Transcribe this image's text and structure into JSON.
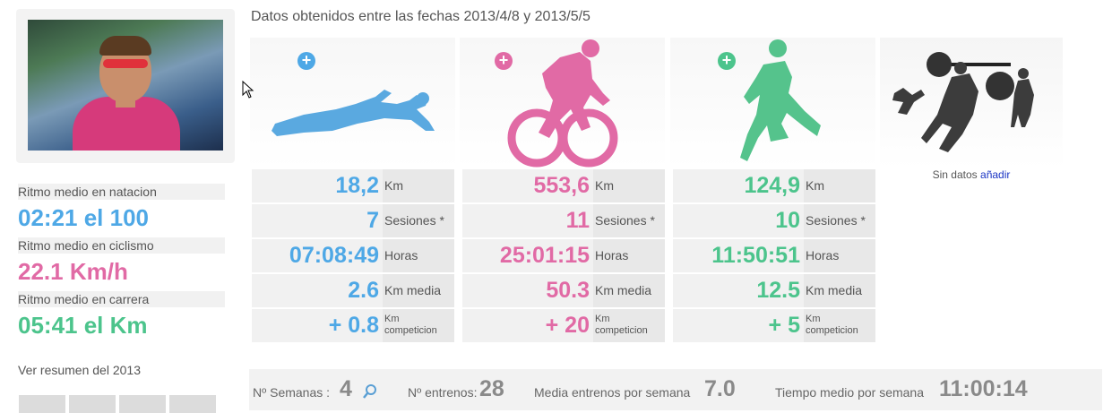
{
  "header": {
    "date_range": "Datos obtenidos entre las fechas 2013/4/8 y 2013/5/5"
  },
  "sidebar": {
    "pace_items": [
      {
        "label": "Ritmo medio en natacion",
        "value": "02:21 el 100",
        "color": "#4ea8e6"
      },
      {
        "label": "Ritmo medio en ciclismo",
        "value": "22.1 Km/h",
        "color": "#e16aa5"
      },
      {
        "label": "Ritmo medio en carrera",
        "value": "05:41 el Km",
        "color": "#4cc48c"
      }
    ],
    "summary_link": "Ver resumen del 2013"
  },
  "sports": [
    {
      "name": "natacion",
      "icon": "swimmer-icon",
      "color": "#4ea8e6",
      "stats": [
        {
          "value": "18,2",
          "unit": "Km"
        },
        {
          "value": "7",
          "unit": "Sesiones *"
        },
        {
          "value": "07:08:49",
          "unit": "Horas"
        },
        {
          "value": "2.6",
          "unit": "Km media"
        },
        {
          "value": "+ 0.8",
          "unit_line1": "Km",
          "unit_line2": "competicion"
        }
      ]
    },
    {
      "name": "ciclismo",
      "icon": "cyclist-icon",
      "color": "#e16aa5",
      "stats": [
        {
          "value": "553,6",
          "unit": "Km"
        },
        {
          "value": "11",
          "unit": "Sesiones *"
        },
        {
          "value": "25:01:15",
          "unit": "Horas"
        },
        {
          "value": "50.3",
          "unit": "Km media"
        },
        {
          "value": "+ 20",
          "unit_line1": "Km",
          "unit_line2": "competicion"
        }
      ]
    },
    {
      "name": "carrera",
      "icon": "runner-icon",
      "color": "#4cc48c",
      "stats": [
        {
          "value": "124,9",
          "unit": "Km"
        },
        {
          "value": "10",
          "unit": "Sesiones *"
        },
        {
          "value": "11:50:51",
          "unit": "Horas"
        },
        {
          "value": "12.5",
          "unit": "Km media"
        },
        {
          "value": "+ 5",
          "unit_line1": "Km",
          "unit_line2": "competicion"
        }
      ]
    }
  ],
  "weights": {
    "icon": "weightlifting-icon",
    "no_data": "Sin datos",
    "add_link": "añadir"
  },
  "bottom": {
    "weeks_label": "Nº Semanas :",
    "weeks_value": "4",
    "trainings_label": "Nº entrenos:",
    "trainings_value": "28",
    "avg_label": "Media entrenos por semana",
    "avg_value": "7.0",
    "time_label": "Tiempo medio por semana",
    "time_value": "11:00:14"
  }
}
